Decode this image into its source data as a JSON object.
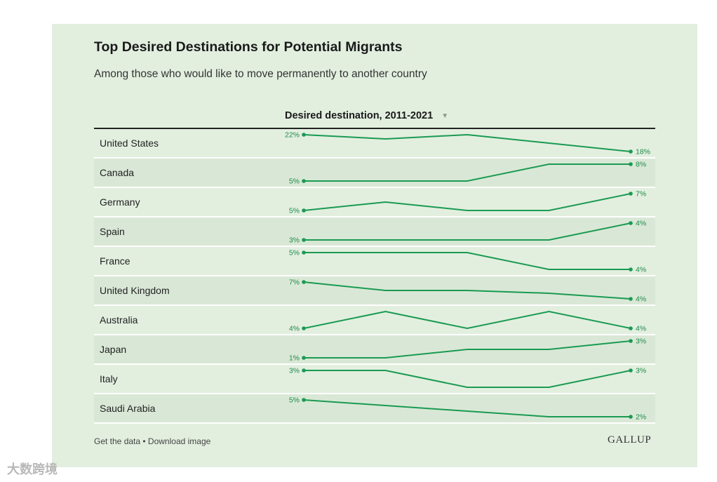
{
  "chart_data": {
    "type": "line",
    "title": "Top Desired Destinations for Potential Migrants",
    "subtitle": "Among those who would like to move permanently to another country",
    "column_header": "Desired destination, 2011-2021",
    "sort_icon": "triangle-down-icon",
    "x": [
      0,
      1,
      2,
      3,
      4
    ],
    "unit": "%",
    "series": [
      {
        "name": "United States",
        "values": [
          22,
          21,
          22,
          20,
          18
        ],
        "start_label": "22%",
        "end_label": "18%"
      },
      {
        "name": "Canada",
        "values": [
          5,
          5,
          5,
          8,
          8
        ],
        "start_label": "5%",
        "end_label": "8%"
      },
      {
        "name": "Germany",
        "values": [
          5,
          6,
          5,
          5,
          7
        ],
        "start_label": "5%",
        "end_label": "7%"
      },
      {
        "name": "Spain",
        "values": [
          3,
          3,
          3,
          3,
          4
        ],
        "start_label": "3%",
        "end_label": "4%"
      },
      {
        "name": "France",
        "values": [
          5,
          5,
          5,
          4,
          4
        ],
        "start_label": "5%",
        "end_label": "4%"
      },
      {
        "name": "United Kingdom",
        "values": [
          7,
          5.5,
          5.5,
          5,
          4
        ],
        "start_label": "7%",
        "end_label": "4%"
      },
      {
        "name": "Australia",
        "values": [
          4,
          6,
          4,
          6,
          4
        ],
        "start_label": "4%",
        "end_label": "4%"
      },
      {
        "name": "Japan",
        "values": [
          1,
          1,
          2,
          2,
          3
        ],
        "start_label": "1%",
        "end_label": "3%"
      },
      {
        "name": "Italy",
        "values": [
          3,
          3,
          2,
          2,
          3
        ],
        "start_label": "3%",
        "end_label": "3%"
      },
      {
        "name": "Saudi Arabia",
        "values": [
          5,
          4,
          3,
          2,
          2
        ],
        "start_label": "5%",
        "end_label": "2%"
      }
    ]
  },
  "colors": {
    "line": "#1a9a52",
    "label": "#1f8a4c"
  },
  "footer": {
    "get_data": "Get the data",
    "separator": " • ",
    "download": "Download image",
    "logo": "GALLUP"
  },
  "watermark": "大数跨境"
}
